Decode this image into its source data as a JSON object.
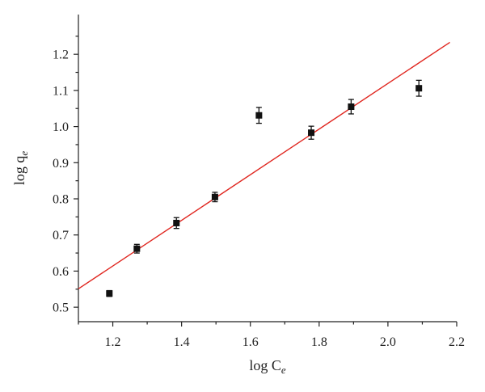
{
  "chart_data": {
    "type": "scatter",
    "xlabel": {
      "prefix": "log C",
      "subscript": "e"
    },
    "ylabel": {
      "prefix": "log q",
      "subscript": "e"
    },
    "xlim": [
      1.1,
      2.2
    ],
    "ylim": [
      0.46,
      1.31
    ],
    "x_ticks": [
      "1.2",
      "1.4",
      "1.6",
      "1.8",
      "2.0",
      "2.2"
    ],
    "y_ticks": [
      "0.5",
      "0.6",
      "0.7",
      "0.8",
      "0.9",
      "1.0",
      "1.1",
      "1.2"
    ],
    "grid": false,
    "points": [
      {
        "x": 1.19,
        "y": 0.538,
        "err": 0.008
      },
      {
        "x": 1.27,
        "y": 0.662,
        "err": 0.012
      },
      {
        "x": 1.385,
        "y": 0.733,
        "err": 0.015
      },
      {
        "x": 1.497,
        "y": 0.805,
        "err": 0.013
      },
      {
        "x": 1.625,
        "y": 1.031,
        "err": 0.022
      },
      {
        "x": 1.777,
        "y": 0.983,
        "err": 0.018
      },
      {
        "x": 1.893,
        "y": 1.055,
        "err": 0.02
      },
      {
        "x": 2.09,
        "y": 1.106,
        "err": 0.022
      }
    ],
    "fit_line": {
      "x": [
        1.1,
        2.18
      ],
      "y": [
        0.551,
        1.233
      ]
    },
    "colors": {
      "points": "#111111",
      "fit_line": "#e0261f",
      "axes": "#222222"
    }
  }
}
